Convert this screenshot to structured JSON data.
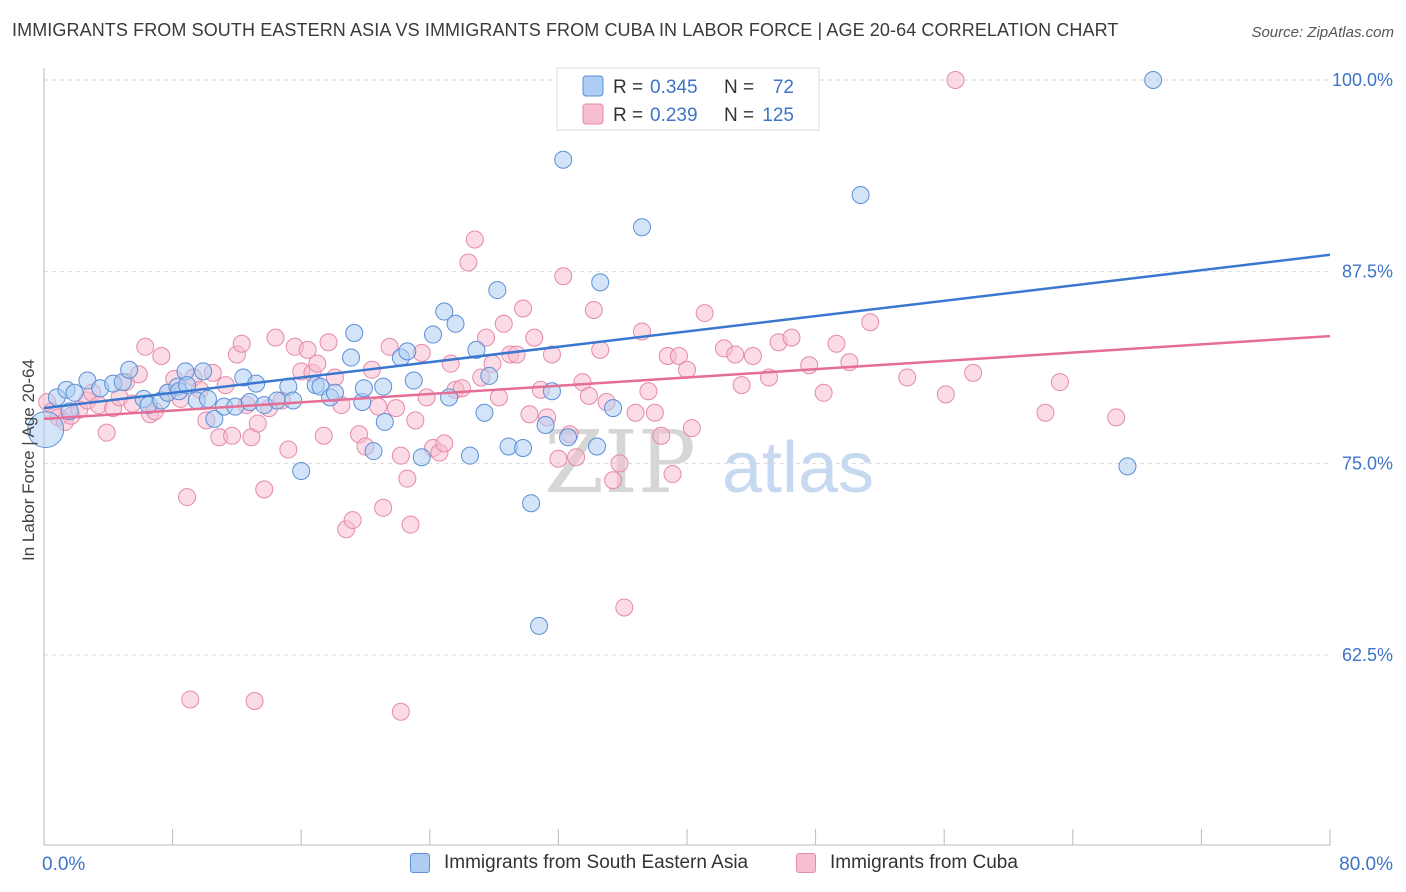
{
  "title": "IMMIGRANTS FROM SOUTH EASTERN ASIA VS IMMIGRANTS FROM CUBA IN LABOR FORCE | AGE 20-64 CORRELATION CHART",
  "source": "Source: ZipAtlas.com",
  "watermark": {
    "zip": "ZIP",
    "atlas": "atlas"
  },
  "colors": {
    "blue_fill": "#aecdf3",
    "blue_stroke": "#5b8fd6",
    "blue_line": "#3a78d0",
    "pink_fill": "#f7bed0",
    "pink_stroke": "#e58aa8",
    "pink_line": "#e56e96",
    "axis_text": "#3d74c8",
    "grid": "#d9d9d9"
  },
  "legend_stats": [
    {
      "r_label": "R =",
      "r_value": "0.345",
      "n_label": "N =",
      "n_value": "72",
      "series": "blue"
    },
    {
      "r_label": "R =",
      "r_value": "0.239",
      "n_label": "N =",
      "n_value": "125",
      "series": "pink"
    }
  ],
  "chart_data": {
    "type": "scatter",
    "title": "IMMIGRANTS FROM SOUTH EASTERN ASIA VS IMMIGRANTS FROM CUBA IN LABOR FORCE | AGE 20-64 CORRELATION CHART",
    "xlabel": "",
    "ylabel": "In Labor Force | Age 20-64",
    "xlim": [
      0,
      80
    ],
    "ylim": [
      50,
      102
    ],
    "x_tick_labels": [
      "0.0%",
      "80.0%"
    ],
    "y_ticks": [
      62.5,
      75.0,
      87.5,
      100.0
    ],
    "y_tick_labels": [
      "62.5%",
      "75.0%",
      "87.5%",
      "100.0%"
    ],
    "grid": "horizontal dashed",
    "legend_position": "bottom",
    "series": [
      {
        "name": "Immigrants from South Eastern Asia",
        "color": "blue",
        "trend": {
          "x": [
            0,
            80
          ],
          "y": [
            78.6,
            88.6
          ]
        },
        "points": [
          [
            0.1,
            77.2
          ],
          [
            0.8,
            79.3
          ],
          [
            1.4,
            79.8
          ],
          [
            1.9,
            79.6
          ],
          [
            2.7,
            80.4
          ],
          [
            3.5,
            79.9
          ],
          [
            4.3,
            80.2
          ],
          [
            4.9,
            80.3
          ],
          [
            5.3,
            81.1
          ],
          [
            6.2,
            79.2
          ],
          [
            6.5,
            78.8
          ],
          [
            7.3,
            79.1
          ],
          [
            7.7,
            79.6
          ],
          [
            8.3,
            80.0
          ],
          [
            8.4,
            79.7
          ],
          [
            8.8,
            81.0
          ],
          [
            8.9,
            80.1
          ],
          [
            9.5,
            79.1
          ],
          [
            9.9,
            81.0
          ],
          [
            10.2,
            79.2
          ],
          [
            10.6,
            77.9
          ],
          [
            11.2,
            78.7
          ],
          [
            11.9,
            78.7
          ],
          [
            12.4,
            80.6
          ],
          [
            12.8,
            79.0
          ],
          [
            13.2,
            80.2
          ],
          [
            13.7,
            78.8
          ],
          [
            14.5,
            79.1
          ],
          [
            15.2,
            80.0
          ],
          [
            15.5,
            79.1
          ],
          [
            16.0,
            74.5
          ],
          [
            16.9,
            80.1
          ],
          [
            17.2,
            80.0
          ],
          [
            17.8,
            79.3
          ],
          [
            18.1,
            79.6
          ],
          [
            19.1,
            81.9
          ],
          [
            19.3,
            83.5
          ],
          [
            19.8,
            79.0
          ],
          [
            19.9,
            79.9
          ],
          [
            20.5,
            75.8
          ],
          [
            21.1,
            80.0
          ],
          [
            21.2,
            77.7
          ],
          [
            22.2,
            81.9
          ],
          [
            22.6,
            82.3
          ],
          [
            23.0,
            80.4
          ],
          [
            23.5,
            75.4
          ],
          [
            24.2,
            83.4
          ],
          [
            24.9,
            84.9
          ],
          [
            25.2,
            79.3
          ],
          [
            25.6,
            84.1
          ],
          [
            26.5,
            75.5
          ],
          [
            26.9,
            82.4
          ],
          [
            27.4,
            78.3
          ],
          [
            27.7,
            80.7
          ],
          [
            28.2,
            86.3
          ],
          [
            28.9,
            76.1
          ],
          [
            29.8,
            76.0
          ],
          [
            30.3,
            72.4
          ],
          [
            30.8,
            64.4
          ],
          [
            31.2,
            77.5
          ],
          [
            31.6,
            79.7
          ],
          [
            32.3,
            94.8
          ],
          [
            32.6,
            76.7
          ],
          [
            34.4,
            76.1
          ],
          [
            34.6,
            86.8
          ],
          [
            35.4,
            78.6
          ],
          [
            37.2,
            90.4
          ],
          [
            43.0,
            100.0
          ],
          [
            50.8,
            92.5
          ],
          [
            67.4,
            74.8
          ],
          [
            1.6,
            78.4
          ],
          [
            69.0,
            100.0
          ]
        ]
      },
      {
        "name": "Immigrants from Cuba",
        "color": "pink",
        "trend": {
          "x": [
            0,
            80
          ],
          "y": [
            77.9,
            83.3
          ]
        },
        "points": [
          [
            0.2,
            79.0
          ],
          [
            0.5,
            78.4
          ],
          [
            0.9,
            78.0
          ],
          [
            1.3,
            77.7
          ],
          [
            1.7,
            78.1
          ],
          [
            2.2,
            78.5
          ],
          [
            2.7,
            79.1
          ],
          [
            3.0,
            79.6
          ],
          [
            3.4,
            78.8
          ],
          [
            3.9,
            77.0
          ],
          [
            4.3,
            78.6
          ],
          [
            4.7,
            79.3
          ],
          [
            5.1,
            80.3
          ],
          [
            5.5,
            78.9
          ],
          [
            5.9,
            80.8
          ],
          [
            6.3,
            82.6
          ],
          [
            6.6,
            78.2
          ],
          [
            6.9,
            78.4
          ],
          [
            7.3,
            82.0
          ],
          [
            7.7,
            79.6
          ],
          [
            8.1,
            80.5
          ],
          [
            8.5,
            79.2
          ],
          [
            8.9,
            72.8
          ],
          [
            9.3,
            80.6
          ],
          [
            9.7,
            79.8
          ],
          [
            10.1,
            77.8
          ],
          [
            10.5,
            80.9
          ],
          [
            10.9,
            76.7
          ],
          [
            11.3,
            80.1
          ],
          [
            11.7,
            76.8
          ],
          [
            12.0,
            82.1
          ],
          [
            12.3,
            82.8
          ],
          [
            12.6,
            78.8
          ],
          [
            12.9,
            76.7
          ],
          [
            13.3,
            77.6
          ],
          [
            13.7,
            73.3
          ],
          [
            14.0,
            78.6
          ],
          [
            14.4,
            83.2
          ],
          [
            14.8,
            79.1
          ],
          [
            15.2,
            75.9
          ],
          [
            15.6,
            82.6
          ],
          [
            16.0,
            81.0
          ],
          [
            16.4,
            82.4
          ],
          [
            16.7,
            80.9
          ],
          [
            17.0,
            81.5
          ],
          [
            17.4,
            76.8
          ],
          [
            17.7,
            82.9
          ],
          [
            18.1,
            80.6
          ],
          [
            18.5,
            78.8
          ],
          [
            18.8,
            70.7
          ],
          [
            19.2,
            71.3
          ],
          [
            19.6,
            76.9
          ],
          [
            20.0,
            76.1
          ],
          [
            20.4,
            81.1
          ],
          [
            20.8,
            78.7
          ],
          [
            21.1,
            72.1
          ],
          [
            21.5,
            82.6
          ],
          [
            21.9,
            78.6
          ],
          [
            22.2,
            75.5
          ],
          [
            22.6,
            74.0
          ],
          [
            22.8,
            71.0
          ],
          [
            23.1,
            77.8
          ],
          [
            23.5,
            82.2
          ],
          [
            23.8,
            79.3
          ],
          [
            24.2,
            76.0
          ],
          [
            24.6,
            75.7
          ],
          [
            24.9,
            76.3
          ],
          [
            25.3,
            81.5
          ],
          [
            25.6,
            79.8
          ],
          [
            26.0,
            79.9
          ],
          [
            26.4,
            88.1
          ],
          [
            26.8,
            89.6
          ],
          [
            27.2,
            80.6
          ],
          [
            27.5,
            83.2
          ],
          [
            27.9,
            81.5
          ],
          [
            28.3,
            79.3
          ],
          [
            28.6,
            84.1
          ],
          [
            29.0,
            82.1
          ],
          [
            29.4,
            82.1
          ],
          [
            29.8,
            85.1
          ],
          [
            30.2,
            78.2
          ],
          [
            30.5,
            83.2
          ],
          [
            30.9,
            79.8
          ],
          [
            31.3,
            78.0
          ],
          [
            31.6,
            82.1
          ],
          [
            32.0,
            75.3
          ],
          [
            32.3,
            87.2
          ],
          [
            32.7,
            76.9
          ],
          [
            33.1,
            75.4
          ],
          [
            33.5,
            80.3
          ],
          [
            33.9,
            79.4
          ],
          [
            34.2,
            85.0
          ],
          [
            34.6,
            82.4
          ],
          [
            35.0,
            79.0
          ],
          [
            35.4,
            73.9
          ],
          [
            35.8,
            75.0
          ],
          [
            36.1,
            65.6
          ],
          [
            36.8,
            78.3
          ],
          [
            37.2,
            83.6
          ],
          [
            37.6,
            79.7
          ],
          [
            38.0,
            78.3
          ],
          [
            38.4,
            76.8
          ],
          [
            38.8,
            82.0
          ],
          [
            39.1,
            74.3
          ],
          [
            39.5,
            82.0
          ],
          [
            40.0,
            81.1
          ],
          [
            40.3,
            77.3
          ],
          [
            41.1,
            84.8
          ],
          [
            42.3,
            82.5
          ],
          [
            43.0,
            82.1
          ],
          [
            43.4,
            80.1
          ],
          [
            44.1,
            82.0
          ],
          [
            45.1,
            80.6
          ],
          [
            45.7,
            82.9
          ],
          [
            46.5,
            83.2
          ],
          [
            47.6,
            81.4
          ],
          [
            48.5,
            79.6
          ],
          [
            49.3,
            82.8
          ],
          [
            50.1,
            81.6
          ],
          [
            51.4,
            84.2
          ],
          [
            53.7,
            80.6
          ],
          [
            56.1,
            79.5
          ],
          [
            56.7,
            100.0
          ],
          [
            57.8,
            80.9
          ],
          [
            62.3,
            78.3
          ],
          [
            63.2,
            80.3
          ],
          [
            66.7,
            78.0
          ],
          [
            13.1,
            59.5
          ],
          [
            22.2,
            58.8
          ],
          [
            9.1,
            59.6
          ]
        ]
      }
    ]
  }
}
